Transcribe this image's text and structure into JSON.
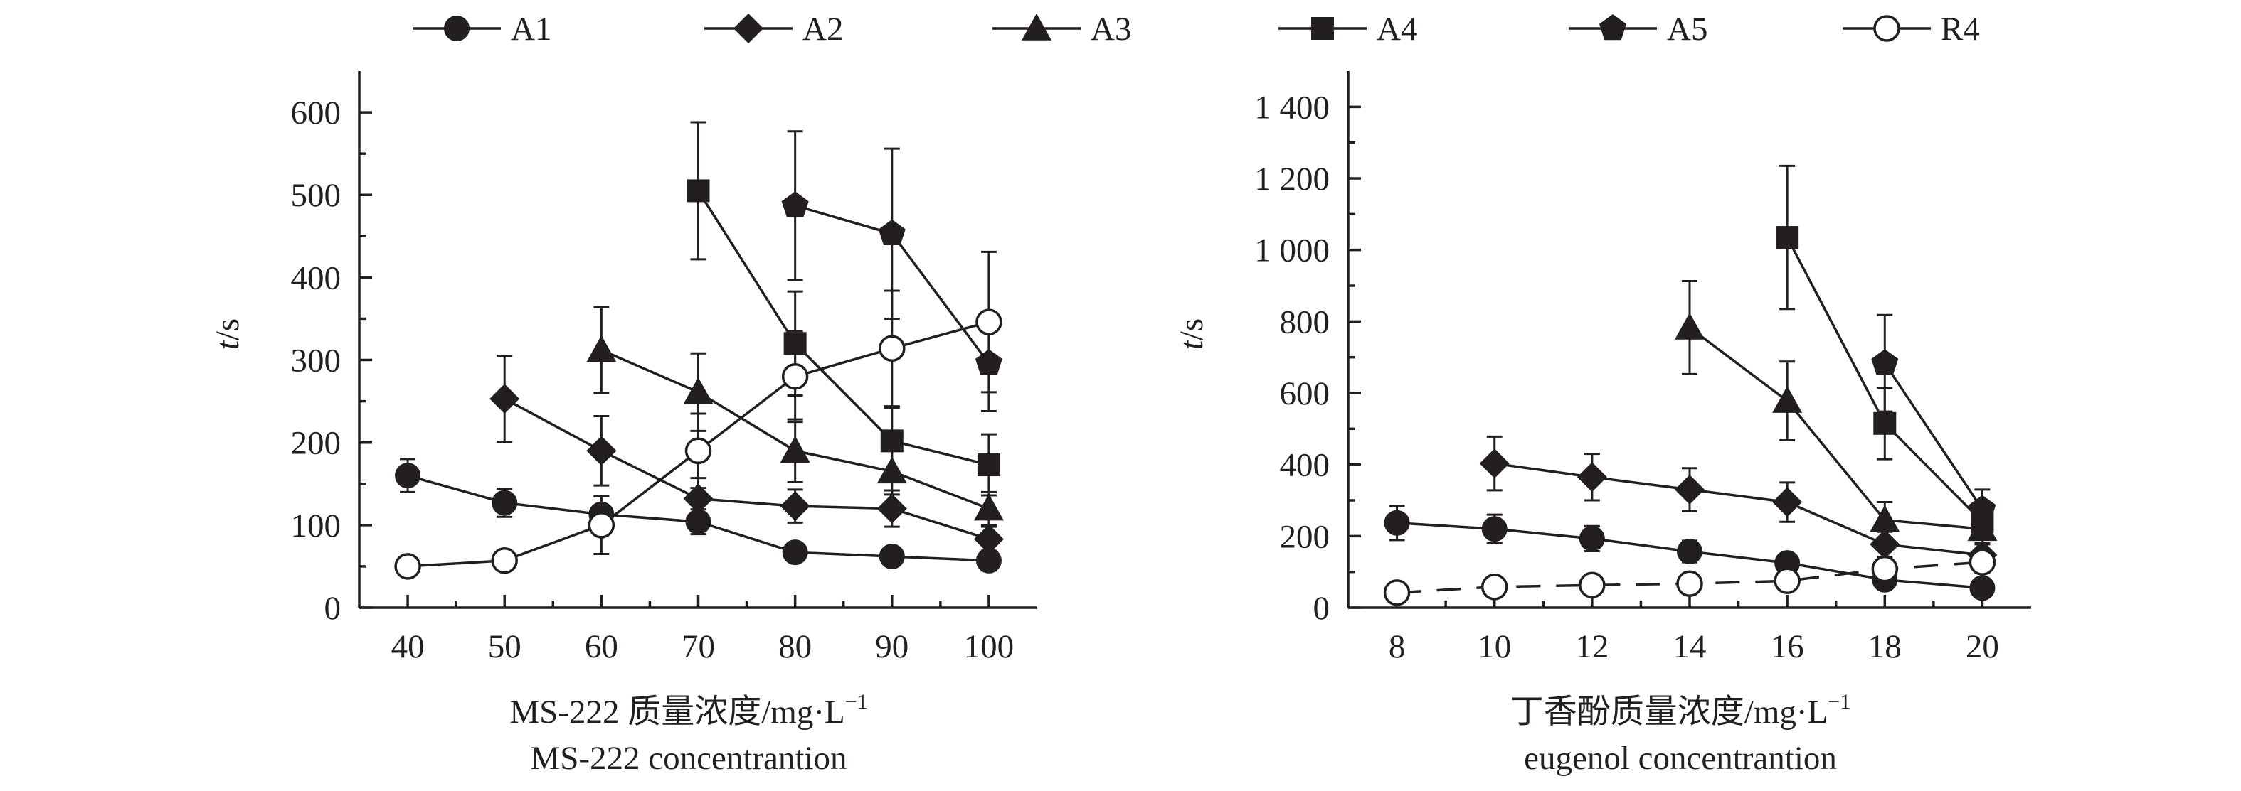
{
  "legend": [
    {
      "name": "A1",
      "marker": "circle-filled"
    },
    {
      "name": "A2",
      "marker": "diamond-filled"
    },
    {
      "name": "A3",
      "marker": "triangle-filled"
    },
    {
      "name": "A4",
      "marker": "square-filled"
    },
    {
      "name": "A5",
      "marker": "pentagon-filled"
    },
    {
      "name": "R4",
      "marker": "circle-open"
    }
  ],
  "colors": {
    "ink": "#231f20",
    "background": "#ffffff"
  },
  "chart_data": [
    {
      "type": "line",
      "xlabel": "MS-222 质量浓度/mg·L",
      "xlabel_sup": "−1",
      "xlabel_en": "MS-222 concentrantion",
      "ylabel": "t",
      "ylabel_unit": "/s",
      "x_ticks": [
        40,
        50,
        60,
        70,
        80,
        90,
        100
      ],
      "y_ticks": [
        0,
        100,
        200,
        300,
        400,
        500,
        600
      ],
      "y_tick_labels": [
        "0",
        "100",
        "200",
        "300",
        "400",
        "500",
        "600"
      ],
      "xlim": [
        35,
        105
      ],
      "ylim": [
        0,
        650
      ],
      "grid": false,
      "series": [
        {
          "name": "A1",
          "x": [
            40,
            50,
            60,
            70,
            80,
            90,
            100
          ],
          "y": [
            160,
            127,
            113,
            104,
            67,
            62,
            57
          ],
          "err": [
            20,
            17,
            22,
            15,
            10,
            10,
            12
          ],
          "dashed": false
        },
        {
          "name": "A2",
          "x": [
            50,
            60,
            70,
            80,
            90,
            100
          ],
          "y": [
            253,
            190,
            132,
            123,
            120,
            83
          ],
          "err": [
            52,
            42,
            25,
            20,
            22,
            15
          ],
          "dashed": false
        },
        {
          "name": "A3",
          "x": [
            60,
            70,
            80,
            90,
            100
          ],
          "y": [
            312,
            261,
            190,
            165,
            120
          ],
          "err": [
            52,
            47,
            38,
            28,
            20
          ],
          "dashed": false
        },
        {
          "name": "A4",
          "x": [
            70,
            80,
            90,
            100
          ],
          "y": [
            505,
            320,
            202,
            173
          ],
          "err": [
            83,
            63,
            40,
            37
          ],
          "dashed": false
        },
        {
          "name": "A5",
          "x": [
            80,
            90,
            100
          ],
          "y": [
            487,
            453,
            296
          ],
          "err": [
            90,
            103,
            58
          ],
          "dashed": false
        },
        {
          "name": "R4",
          "x": [
            40,
            50,
            60,
            70,
            80,
            90,
            100
          ],
          "y": [
            50,
            57,
            100,
            190,
            280,
            314,
            346
          ],
          "err": [
            10,
            12,
            35,
            45,
            55,
            70,
            85
          ],
          "dashed": false
        }
      ]
    },
    {
      "type": "line",
      "xlabel": "丁香酚质量浓度/mg·L",
      "xlabel_sup": "−1",
      "xlabel_en": "eugenol concentrantion",
      "ylabel": "t",
      "ylabel_unit": "/s",
      "x_ticks": [
        8,
        10,
        12,
        14,
        16,
        18,
        20
      ],
      "y_ticks": [
        0,
        200,
        400,
        600,
        800,
        1000,
        1200,
        1400
      ],
      "y_tick_labels": [
        "0",
        "200",
        "400",
        "600",
        "800",
        "1 000",
        "1 200",
        "1 400"
      ],
      "xlim": [
        7,
        21
      ],
      "ylim": [
        0,
        1500
      ],
      "grid": false,
      "series": [
        {
          "name": "A1",
          "x": [
            8,
            10,
            12,
            14,
            16,
            18,
            20
          ],
          "y": [
            237,
            220,
            193,
            157,
            125,
            78,
            55
          ],
          "err": [
            48,
            40,
            35,
            30,
            25,
            20,
            20
          ],
          "dashed": false
        },
        {
          "name": "A2",
          "x": [
            10,
            12,
            14,
            16,
            18,
            20
          ],
          "y": [
            403,
            365,
            330,
            295,
            177,
            147
          ],
          "err": [
            75,
            65,
            60,
            55,
            35,
            30
          ],
          "dashed": false
        },
        {
          "name": "A3",
          "x": [
            14,
            16,
            18,
            20
          ],
          "y": [
            783,
            578,
            245,
            220
          ],
          "err": [
            130,
            110,
            50,
            40
          ],
          "dashed": false
        },
        {
          "name": "A4",
          "x": [
            16,
            18,
            20
          ],
          "y": [
            1035,
            515,
            240
          ],
          "err": [
            200,
            100,
            50
          ],
          "dashed": false
        },
        {
          "name": "A5",
          "x": [
            18,
            20
          ],
          "y": [
            683,
            275
          ],
          "err": [
            135,
            55
          ],
          "dashed": false
        },
        {
          "name": "R4",
          "x": [
            8,
            10,
            12,
            14,
            16,
            18,
            20
          ],
          "y": [
            42,
            58,
            63,
            67,
            75,
            108,
            127
          ],
          "err": [
            25,
            25,
            25,
            25,
            25,
            30,
            30
          ],
          "dashed": true
        }
      ]
    }
  ]
}
